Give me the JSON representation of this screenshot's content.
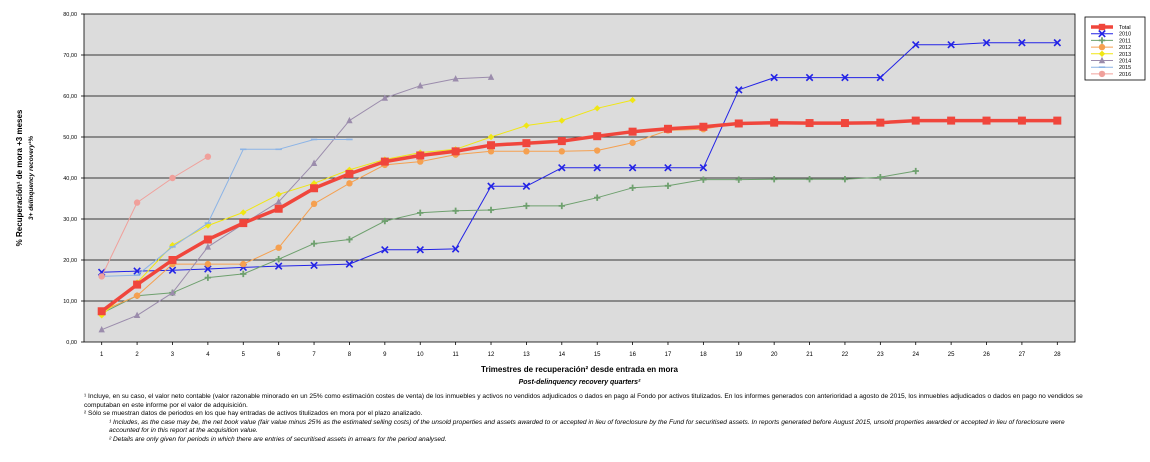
{
  "chart_data": {
    "type": "line",
    "ylabel": "% Recuperación¹ de mora +3 meses",
    "ylabel_en": "3+ delinquency recovery¹%",
    "xlabel": "Trimestres de recuperación² desde entrada en mora",
    "xlabel_en": "Post-delinquency recovery quarters²",
    "ylim": [
      0,
      80
    ],
    "yticks": [
      "0,00",
      "10,00",
      "20,00",
      "30,00",
      "40,00",
      "50,00",
      "60,00",
      "70,00",
      "80,00"
    ],
    "x": [
      1,
      2,
      3,
      4,
      5,
      6,
      7,
      8,
      9,
      10,
      11,
      12,
      13,
      14,
      15,
      16,
      17,
      18,
      19,
      20,
      21,
      22,
      23,
      24,
      25,
      26,
      27,
      28
    ],
    "background": "#dcdcdc",
    "grid": true,
    "legend_position": "right",
    "series": [
      {
        "name": "Total",
        "color": "#f0463c",
        "marker": "square",
        "width": 3.5,
        "values": [
          7.5,
          14,
          20,
          25,
          29,
          32.5,
          37.5,
          41,
          44,
          45.5,
          46.5,
          48,
          48.5,
          49,
          50.2,
          51.3,
          52,
          52.5,
          53.3,
          53.5,
          53.4,
          53.4,
          53.5,
          54,
          54,
          54,
          54,
          54
        ]
      },
      {
        "name": "2010",
        "color": "#2323e6",
        "marker": "x",
        "width": 1,
        "values": [
          17,
          17.3,
          17.5,
          17.8,
          18.2,
          18.5,
          18.7,
          19,
          22.5,
          22.5,
          22.7,
          38,
          38,
          42.5,
          42.5,
          42.5,
          42.5,
          42.5,
          61.5,
          64.5,
          64.5,
          64.5,
          64.5,
          72.5,
          72.5,
          73,
          73,
          73
        ]
      },
      {
        "name": "2011",
        "color": "#6ea06e",
        "marker": "plus",
        "width": 1,
        "values": [
          7,
          11.3,
          12,
          15.7,
          16.6,
          20.2,
          24,
          25,
          29.5,
          31.5,
          32,
          32.2,
          33.2,
          33.2,
          35.2,
          37.6,
          38.1,
          39.6,
          39.6,
          39.7,
          39.7,
          39.7,
          40.2,
          41.7,
          null,
          null,
          null,
          null
        ]
      },
      {
        "name": "2012",
        "color": "#f5a050",
        "marker": "circle",
        "width": 1,
        "values": [
          7.5,
          11.3,
          19,
          19,
          19,
          23,
          33.7,
          38.7,
          43.2,
          44,
          45.7,
          46.5,
          46.5,
          46.5,
          46.7,
          48.6,
          51.6,
          51.9,
          53.5,
          53.5,
          null,
          null,
          null,
          null,
          null,
          null,
          null,
          null
        ]
      },
      {
        "name": "2013",
        "color": "#f0e614",
        "marker": "diamond",
        "width": 1,
        "values": [
          6.5,
          14.5,
          23.6,
          28.4,
          31.6,
          36,
          38.7,
          42,
          44.5,
          46.2,
          47,
          50,
          52.8,
          54,
          57,
          59,
          null,
          null,
          null,
          null,
          null,
          null,
          null,
          null,
          null,
          null,
          null,
          null
        ]
      },
      {
        "name": "2014",
        "color": "#9b8cac",
        "marker": "triangle",
        "width": 1,
        "values": [
          3,
          6.5,
          12,
          23.2,
          28.8,
          34.2,
          43.6,
          54,
          59.5,
          62.5,
          64.2,
          64.6,
          null,
          null,
          null,
          null,
          null,
          null,
          null,
          null,
          null,
          null,
          null,
          null,
          null,
          null,
          null,
          null
        ]
      },
      {
        "name": "2015",
        "color": "#8cb4e6",
        "marker": "dash",
        "width": 1,
        "values": [
          16,
          16.3,
          23.2,
          29,
          47,
          47,
          49.4,
          49.4,
          null,
          null,
          null,
          null,
          null,
          null,
          null,
          null,
          null,
          null,
          null,
          null,
          null,
          null,
          null,
          null,
          null,
          null,
          null,
          null
        ]
      },
      {
        "name": "2016",
        "color": "#f0a09b",
        "marker": "circle",
        "width": 1,
        "values": [
          16,
          34,
          40,
          45.2,
          null,
          null,
          null,
          null,
          null,
          null,
          null,
          null,
          null,
          null,
          null,
          null,
          null,
          null,
          null,
          null,
          null,
          null,
          null,
          null,
          null,
          null,
          null,
          null
        ]
      }
    ]
  },
  "footnotes": {
    "es_1": "¹ Incluye, en su caso, el valor neto contable (valor razonable minorado en un 25% como estimación costes de venta) de los inmuebles y activos no vendidos adjudicados o dados en pago al Fondo por activos titulizados. En los informes generados con anterioridad a agosto de 2015, los inmuebles adjudicados o dados en pago no vendidos se computaban en este informe por el valor de adquisición.",
    "es_2": "² Sólo se muestran datos de periodos en los que hay entradas de activos titulizados en mora por el plazo analizado.",
    "en_1": "¹ Includes, as the case may be, the net book value (fair value minus 25% as the estimated selling costs) of the unsold properties and assets awarded to or accepted in lieu of foreclosure by the Fund for securitised assets. In reports generated before August 2015, unsold properties awarded or accepted in lieu of foreclosure were accounted for in this report at the acquisition value.",
    "en_2": "² Details are only given for periods in which there are entries of securitised assets in arrears for the period analysed."
  }
}
